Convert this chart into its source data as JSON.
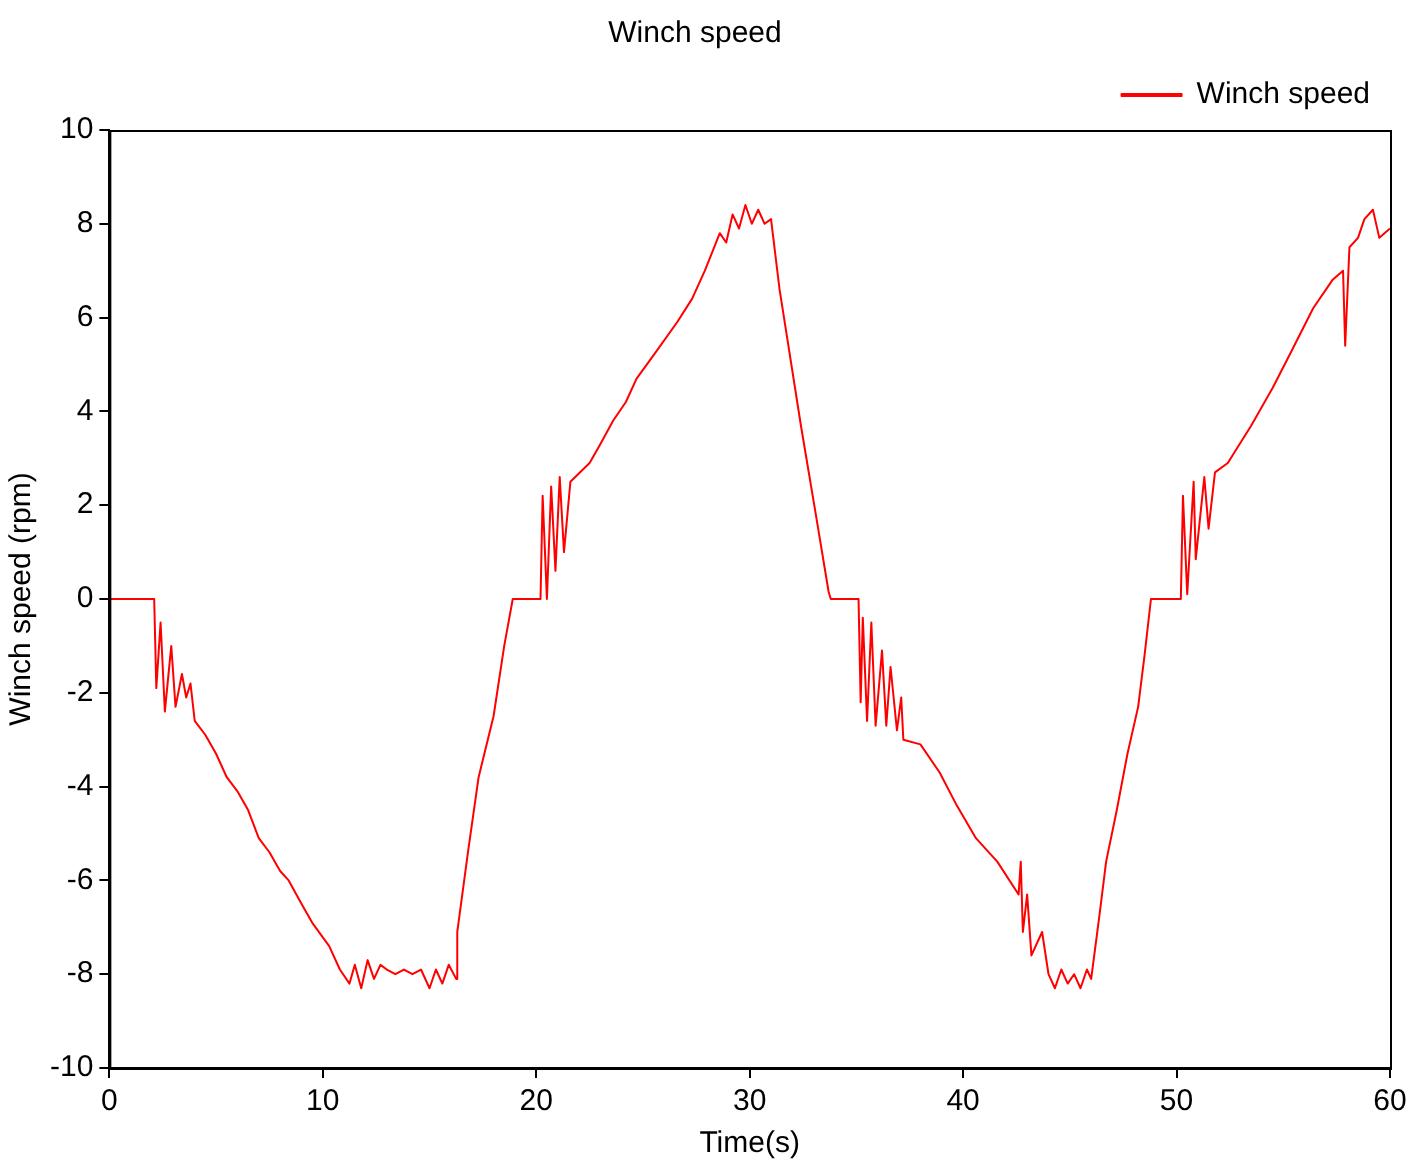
{
  "chart_data": {
    "type": "line",
    "title": "Winch speed",
    "xlabel": "Time(s)",
    "ylabel": "Winch speed (rpm)",
    "xlim": [
      0,
      60
    ],
    "xticks": [
      0,
      10,
      20,
      30,
      40,
      50,
      60
    ],
    "ylim": [
      -10,
      10
    ],
    "yticks": [
      -10,
      -8,
      -6,
      -4,
      -2,
      0,
      2,
      4,
      6,
      8,
      10
    ],
    "grid": false,
    "legend": "top right",
    "marker": "none",
    "line_style": "solid",
    "series": [
      {
        "name": "Winch speed",
        "color": "#ff0000",
        "x": [
          0,
          2.1,
          2.2,
          2.4,
          2.6,
          2.9,
          3.1,
          3.4,
          3.6,
          3.8,
          4.0,
          4.5,
          5.0,
          5.5,
          6.0,
          6.5,
          7.0,
          7.5,
          8.0,
          8.4,
          9.0,
          9.5,
          10.3,
          10.8,
          11.25,
          11.5,
          11.8,
          12.1,
          12.4,
          12.7,
          13.0,
          13.4,
          13.8,
          14.2,
          14.6,
          15.0,
          15.3,
          15.6,
          15.9,
          16.25,
          16.3,
          16.8,
          17.3,
          18.0,
          18.5,
          18.9,
          20.2,
          20.3,
          20.5,
          20.7,
          20.9,
          21.1,
          21.3,
          21.6,
          22.5,
          23.0,
          23.6,
          24.2,
          24.7,
          25.5,
          26.6,
          27.3,
          27.9,
          28.6,
          28.9,
          29.2,
          29.5,
          29.8,
          30.1,
          30.4,
          30.7,
          31.0,
          31.4,
          32.4,
          33.1,
          33.7,
          33.8,
          35.1,
          35.2,
          35.3,
          35.5,
          35.7,
          35.9,
          36.2,
          36.4,
          36.6,
          36.9,
          37.1,
          37.2,
          38.0,
          38.9,
          39.7,
          40.6,
          41.6,
          42.6,
          42.7,
          42.8,
          43.0,
          43.2,
          43.7,
          44.0,
          44.3,
          44.6,
          44.9,
          45.2,
          45.5,
          45.8,
          46.0,
          46.4,
          46.7,
          47.2,
          47.7,
          48.2,
          48.5,
          48.8,
          50.2,
          50.3,
          50.5,
          50.8,
          50.9,
          51.3,
          51.5,
          51.8,
          52.4,
          53.5,
          54.5,
          55.4,
          56.4,
          57.3,
          57.8,
          57.9,
          58.1,
          58.5,
          58.8,
          59.2,
          59.5,
          60
        ],
        "values": [
          0,
          0,
          -1.9,
          -0.5,
          -2.4,
          -1.0,
          -2.3,
          -1.6,
          -2.1,
          -1.8,
          -2.6,
          -2.9,
          -3.3,
          -3.8,
          -4.1,
          -4.5,
          -5.1,
          -5.4,
          -5.8,
          -6.0,
          -6.5,
          -6.9,
          -7.4,
          -7.9,
          -8.2,
          -7.8,
          -8.3,
          -7.7,
          -8.1,
          -7.8,
          -7.9,
          -8.0,
          -7.9,
          -8.0,
          -7.9,
          -8.3,
          -7.9,
          -8.2,
          -7.8,
          -8.1,
          -7.1,
          -5.4,
          -3.8,
          -2.5,
          -1.0,
          0,
          0,
          2.2,
          0,
          2.4,
          0.6,
          2.6,
          1.0,
          2.5,
          2.9,
          3.3,
          3.8,
          4.2,
          4.7,
          5.2,
          5.9,
          6.4,
          7.0,
          7.8,
          7.6,
          8.2,
          7.9,
          8.4,
          8.0,
          8.3,
          8.0,
          8.1,
          6.6,
          3.7,
          1.8,
          0.15,
          0,
          0,
          -2.2,
          -0.4,
          -2.6,
          -0.5,
          -2.7,
          -1.1,
          -2.7,
          -1.45,
          -2.8,
          -2.1,
          -3.0,
          -3.1,
          -3.7,
          -4.4,
          -5.1,
          -5.6,
          -6.3,
          -5.6,
          -7.1,
          -6.3,
          -7.6,
          -7.1,
          -8.0,
          -8.3,
          -7.9,
          -8.2,
          -8.0,
          -8.3,
          -7.9,
          -8.1,
          -6.7,
          -5.6,
          -4.5,
          -3.3,
          -2.3,
          -1.2,
          0,
          0,
          2.2,
          0.1,
          2.5,
          0.85,
          2.6,
          1.5,
          2.7,
          2.9,
          3.7,
          4.5,
          5.3,
          6.2,
          6.8,
          7.0,
          5.4,
          7.5,
          7.7,
          8.1,
          8.3,
          7.7,
          7.9
        ]
      }
    ]
  }
}
